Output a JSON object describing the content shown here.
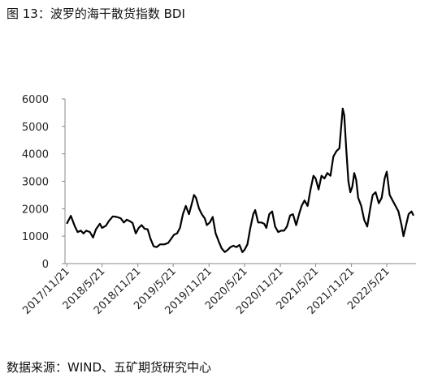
{
  "title": "图 13：波罗的海干散货指数 BDI",
  "source": "数据来源：WIND、五矿期货研究中心",
  "chart_data": {
    "type": "line",
    "color": "#000000",
    "x": [
      "2017/11/21",
      "2017/12/12",
      "2018/1/2",
      "2018/1/16",
      "2018/2/1",
      "2018/2/15",
      "2018/3/1",
      "2018/3/20",
      "2018/4/5",
      "2018/4/20",
      "2018/5/10",
      "2018/5/21",
      "2018/6/10",
      "2018/6/25",
      "2018/7/15",
      "2018/8/5",
      "2018/8/25",
      "2018/9/10",
      "2018/9/25",
      "2018/10/10",
      "2018/10/25",
      "2018/11/10",
      "2018/11/25",
      "2018/12/10",
      "2018/12/25",
      "2019/1/10",
      "2019/1/25",
      "2019/2/10",
      "2019/2/25",
      "2019/3/15",
      "2019/4/5",
      "2019/4/25",
      "2019/5/10",
      "2019/5/25",
      "2019/6/10",
      "2019/6/25",
      "2019/7/10",
      "2019/7/25",
      "2019/8/10",
      "2019/8/25",
      "2019/9/5",
      "2019/9/15",
      "2019/10/1",
      "2019/10/15",
      "2019/10/30",
      "2019/11/10",
      "2019/11/25",
      "2019/12/10",
      "2019/12/25",
      "2020/1/10",
      "2020/1/25",
      "2020/2/10",
      "2020/2/25",
      "2020/3/10",
      "2020/3/25",
      "2020/4/10",
      "2020/4/25",
      "2020/5/10",
      "2020/5/21",
      "2020/6/5",
      "2020/6/20",
      "2020/7/5",
      "2020/7/15",
      "2020/7/30",
      "2020/8/15",
      "2020/8/30",
      "2020/9/10",
      "2020/9/25",
      "2020/10/10",
      "2020/10/25",
      "2020/11/10",
      "2020/11/25",
      "2020/12/10",
      "2020/12/25",
      "2021/1/10",
      "2021/1/25",
      "2021/2/10",
      "2021/2/25",
      "2021/3/10",
      "2021/3/25",
      "2021/4/10",
      "2021/4/25",
      "2021/5/10",
      "2021/5/21",
      "2021/6/5",
      "2021/6/20",
      "2021/7/5",
      "2021/7/20",
      "2021/8/5",
      "2021/8/20",
      "2021/9/5",
      "2021/9/20",
      "2021/10/7",
      "2021/10/15",
      "2021/10/25",
      "2021/11/5",
      "2021/11/15",
      "2021/11/25",
      "2021/12/5",
      "2021/12/15",
      "2021/12/25",
      "2022/1/10",
      "2022/1/25",
      "2022/2/10",
      "2022/2/25",
      "2022/3/10",
      "2022/3/25",
      "2022/4/10",
      "2022/4/25",
      "2022/5/10",
      "2022/5/21",
      "2022/6/5",
      "2022/6/20",
      "2022/7/5",
      "2022/7/20",
      "2022/8/5",
      "2022/8/15",
      "2022/8/25",
      "2022/9/10",
      "2022/9/25",
      "2022/10/5"
    ],
    "values": [
      1450,
      1740,
      1350,
      1150,
      1200,
      1100,
      1200,
      1150,
      950,
      1250,
      1450,
      1300,
      1380,
      1550,
      1720,
      1700,
      1650,
      1500,
      1600,
      1550,
      1480,
      1100,
      1300,
      1400,
      1270,
      1250,
      900,
      630,
      600,
      700,
      700,
      750,
      900,
      1050,
      1100,
      1300,
      1800,
      2100,
      1800,
      2200,
      2500,
      2400,
      2000,
      1800,
      1650,
      1400,
      1500,
      1700,
      1100,
      800,
      550,
      420,
      500,
      600,
      650,
      600,
      680,
      420,
      500,
      700,
      1300,
      1800,
      1950,
      1500,
      1500,
      1450,
      1300,
      1800,
      1900,
      1350,
      1150,
      1200,
      1200,
      1350,
      1750,
      1800,
      1400,
      1800,
      2100,
      2300,
      2100,
      2700,
      3200,
      3100,
      2700,
      3200,
      3100,
      3300,
      3200,
      3900,
      4100,
      4200,
      5650,
      5400,
      4200,
      3000,
      2600,
      2800,
      3300,
      3050,
      2400,
      2100,
      1600,
      1350,
      2000,
      2500,
      2600,
      2200,
      2400,
      3100,
      3350,
      2500,
      2300,
      2100,
      1900,
      1400,
      1000,
      1300,
      1800,
      1900,
      1750
    ],
    "xlim": [
      "2017/11/12",
      "2022/10/18"
    ],
    "xticks": [
      "2017/11/21",
      "2018/5/21",
      "2018/11/21",
      "2019/5/21",
      "2019/11/21",
      "2020/5/21",
      "2020/11/21",
      "2021/5/21",
      "2021/11/21",
      "2022/5/21"
    ],
    "ylim": [
      0,
      6000
    ],
    "yticks": [
      0,
      1000,
      2000,
      3000,
      4000,
      5000,
      6000
    ]
  }
}
